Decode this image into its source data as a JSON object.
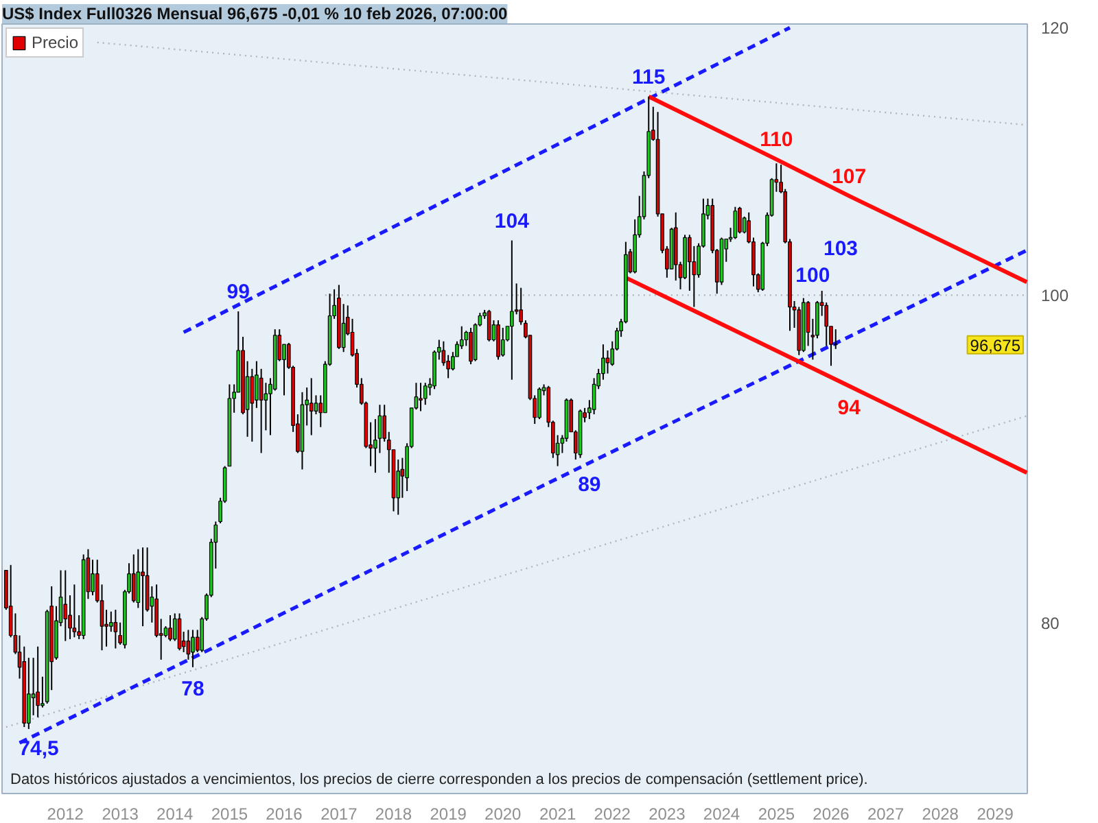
{
  "chart_data": {
    "type": "candlestick",
    "title": "US$ Index Full0326 Mensual 96,675 -0,01 % 10 feb 2026, 07:00:00",
    "log": "y",
    "legend": "top left",
    "xlim": [
      "2010-11-04",
      "2029-08-04"
    ],
    "ylim": [
      71.2,
      120.3
    ],
    "xticks": [
      "2012",
      "2013",
      "2014",
      "2015",
      "2016",
      "2017",
      "2018",
      "2019",
      "2020",
      "2021",
      "2022",
      "2023",
      "2024",
      "2025",
      "2026",
      "2027",
      "2028",
      "2029"
    ],
    "yticks": [
      80,
      100,
      120
    ],
    "series": [
      {
        "type": "line",
        "x": [
          "2010-12",
          "2029-08"
        ],
        "values": [
          74.5,
          92.1
        ],
        "color": "#b4b4b4",
        "line_style": "dotted"
      },
      {
        "type": "line",
        "x": [
          "2012-08",
          "2029-08"
        ],
        "values": [
          118.8,
          112.3
        ],
        "color": "#b4b4b4",
        "line_style": "dotted"
      },
      {
        "type": "line",
        "x": [
          "2016-10",
          "2025-09",
          "2029-08"
        ],
        "values": [
          100,
          100,
          100
        ],
        "color": "#b4b4b4",
        "line_style": "dotted"
      },
      {
        "type": "line",
        "x": [
          "2014-03",
          "2025-04"
        ],
        "values": [
          97.5,
          120.0
        ],
        "color": "#1a1aff",
        "line_style": "dashed"
      },
      {
        "type": "line",
        "x": [
          "2011-03",
          "2021-08",
          "2029-08"
        ],
        "values": [
          73.7,
          89.2,
          103.1
        ],
        "color": "#1a1aff",
        "line_style": "dashed"
      },
      {
        "type": "line",
        "x": [
          "2022-09",
          "2025-01",
          "2026-05",
          "2029-08"
        ],
        "values": [
          114.5,
          109.7,
          107.0,
          100.9
        ],
        "value_labels": [
          null,
          "110",
          "107",
          null
        ],
        "color": "#ff0d0d",
        "line_style": "solid"
      },
      {
        "type": "line",
        "x": [
          "2022-04",
          "2026-05",
          "2029-08"
        ],
        "values": [
          101.2,
          94.0,
          88.6
        ],
        "value_labels": [
          null,
          "94",
          null
        ],
        "color": "#ff0d0d",
        "line_style": "solid"
      },
      {
        "name": "Precio",
        "x": [
          "2010-12",
          "2011-01",
          "2011-02",
          "2011-03",
          "2011-04",
          "2011-05",
          "2011-06",
          "2011-07",
          "2011-08",
          "2011-09",
          "2011-10",
          "2011-11",
          "2011-12",
          "2012-01",
          "2012-02",
          "2012-03",
          "2012-04",
          "2012-05",
          "2012-06",
          "2012-07",
          "2012-08",
          "2012-09",
          "2012-10",
          "2012-11",
          "2012-12",
          "2013-01",
          "2013-02",
          "2013-03",
          "2013-04",
          "2013-05",
          "2013-06",
          "2013-07",
          "2013-08",
          "2013-09",
          "2013-10",
          "2013-11",
          "2013-12",
          "2014-01",
          "2014-02",
          "2014-03",
          "2014-04",
          "2014-05",
          "2014-06",
          "2014-07",
          "2014-08",
          "2014-09",
          "2014-10",
          "2014-11",
          "2014-12",
          "2015-01",
          "2015-02",
          "2015-03",
          "2015-04",
          "2015-05",
          "2015-06",
          "2015-07",
          "2015-08",
          "2015-09",
          "2015-10",
          "2015-11",
          "2015-12",
          "2016-01",
          "2016-02",
          "2016-03",
          "2016-04",
          "2016-05",
          "2016-06",
          "2016-07",
          "2016-08",
          "2016-09",
          "2016-10",
          "2016-11",
          "2016-12",
          "2017-01",
          "2017-02",
          "2017-03",
          "2017-04",
          "2017-05",
          "2017-06",
          "2017-07",
          "2017-08",
          "2017-09",
          "2017-10",
          "2017-11",
          "2017-12",
          "2018-01",
          "2018-02",
          "2018-03",
          "2018-04",
          "2018-05",
          "2018-06",
          "2018-07",
          "2018-08",
          "2018-09",
          "2018-10",
          "2018-11",
          "2018-12",
          "2019-01",
          "2019-02",
          "2019-03",
          "2019-04",
          "2019-05",
          "2019-06",
          "2019-07",
          "2019-08",
          "2019-09",
          "2019-10",
          "2019-11",
          "2019-12",
          "2020-01",
          "2020-02",
          "2020-03",
          "2020-04",
          "2020-05",
          "2020-06",
          "2020-07",
          "2020-08",
          "2020-09",
          "2020-10",
          "2020-11",
          "2020-12",
          "2021-01",
          "2021-02",
          "2021-03",
          "2021-04",
          "2021-05",
          "2021-06",
          "2021-07",
          "2021-08",
          "2021-09",
          "2021-10",
          "2021-11",
          "2021-12",
          "2022-01",
          "2022-02",
          "2022-03",
          "2022-04",
          "2022-05",
          "2022-06",
          "2022-07",
          "2022-08",
          "2022-09",
          "2022-10",
          "2022-11",
          "2022-12",
          "2023-01",
          "2023-02",
          "2023-03",
          "2023-04",
          "2023-05",
          "2023-06",
          "2023-07",
          "2023-08",
          "2023-09",
          "2023-10",
          "2023-11",
          "2023-12",
          "2024-01",
          "2024-02",
          "2024-03",
          "2024-04",
          "2024-05",
          "2024-06",
          "2024-07",
          "2024-08",
          "2024-09",
          "2024-10",
          "2024-11",
          "2024-12",
          "2025-01",
          "2025-02",
          "2025-03",
          "2025-04",
          "2025-05",
          "2025-06",
          "2025-07",
          "2025-08",
          "2025-09",
          "2025-10",
          "2025-11",
          "2025-12",
          "2026-01",
          "2026-02"
        ],
        "ohlc": [
          [
            82.9,
            82.9,
            80.7,
            80.8
          ],
          [
            80.9,
            83.2,
            79.2,
            79.3
          ],
          [
            79.3,
            80.5,
            78.3,
            78.4
          ],
          [
            78.4,
            79.3,
            77.0,
            77.6
          ],
          [
            77.9,
            78.7,
            74.5,
            74.7
          ],
          [
            74.7,
            78.1,
            74.4,
            76.2
          ],
          [
            76.0,
            78.1,
            75.1,
            76.2
          ],
          [
            76.3,
            78.7,
            75.0,
            75.6
          ],
          [
            75.6,
            77.1,
            75.5,
            75.7
          ],
          [
            75.8,
            80.7,
            75.7,
            80.6
          ],
          [
            80.9,
            82.0,
            76.4,
            77.9
          ],
          [
            78.1,
            80.9,
            78.0,
            80.1
          ],
          [
            80.0,
            82.9,
            79.8,
            81.4
          ],
          [
            81.0,
            82.9,
            79.0,
            80.2
          ],
          [
            80.4,
            81.5,
            79.1,
            79.7
          ],
          [
            79.7,
            82.1,
            79.2,
            79.5
          ],
          [
            79.5,
            80.4,
            79.1,
            79.3
          ],
          [
            79.3,
            83.8,
            79.1,
            83.5
          ],
          [
            83.6,
            84.1,
            81.3,
            81.7
          ],
          [
            81.7,
            83.5,
            81.5,
            82.7
          ],
          [
            82.7,
            83.5,
            81.1,
            81.2
          ],
          [
            81.2,
            82.1,
            78.5,
            79.8
          ],
          [
            79.9,
            80.7,
            78.7,
            79.8
          ],
          [
            79.8,
            80.6,
            79.5,
            80.0
          ],
          [
            80.0,
            80.7,
            78.6,
            79.5
          ],
          [
            79.3,
            80.0,
            78.8,
            78.9
          ],
          [
            78.8,
            81.8,
            78.6,
            81.7
          ],
          [
            81.7,
            83.3,
            81.6,
            82.7
          ],
          [
            82.7,
            83.8,
            81.1,
            81.2
          ],
          [
            81.1,
            84.1,
            80.8,
            82.8
          ],
          [
            82.8,
            84.2,
            79.8,
            82.6
          ],
          [
            82.6,
            84.2,
            80.6,
            80.7
          ],
          [
            80.9,
            82.0,
            80.0,
            81.4
          ],
          [
            81.3,
            82.1,
            79.2,
            79.3
          ],
          [
            79.4,
            80.2,
            78.0,
            79.3
          ],
          [
            79.3,
            79.8,
            79.2,
            79.7
          ],
          [
            79.7,
            80.4,
            79.0,
            79.1
          ],
          [
            79.1,
            80.5,
            79.0,
            80.2
          ],
          [
            80.2,
            80.5,
            78.5,
            78.6
          ],
          [
            79.0,
            79.5,
            78.4,
            78.7
          ],
          [
            79.0,
            79.6,
            78.0,
            78.3
          ],
          [
            78.4,
            79.6,
            77.6,
            79.2
          ],
          [
            79.2,
            79.6,
            78.4,
            78.5
          ],
          [
            78.5,
            80.3,
            78.4,
            80.2
          ],
          [
            80.2,
            81.6,
            80.1,
            81.5
          ],
          [
            81.5,
            84.7,
            81.4,
            84.5
          ],
          [
            84.5,
            85.7,
            83.0,
            85.5
          ],
          [
            85.7,
            87.1,
            85.6,
            86.9
          ],
          [
            86.9,
            89.0,
            86.8,
            88.9
          ],
          [
            89.0,
            94.1,
            89.0,
            93.2
          ],
          [
            93.2,
            94.1,
            92.3,
            93.6
          ],
          [
            93.6,
            98.9,
            93.6,
            96.3
          ],
          [
            96.3,
            97.2,
            92.2,
            92.3
          ],
          [
            92.5,
            95.6,
            90.8,
            94.6
          ],
          [
            94.6,
            95.1,
            90.5,
            92.9
          ],
          [
            93.1,
            95.6,
            92.6,
            94.7
          ],
          [
            94.5,
            95.1,
            89.8,
            93.1
          ],
          [
            93.1,
            94.2,
            91.2,
            93.5
          ],
          [
            93.5,
            94.5,
            90.9,
            94.1
          ],
          [
            93.8,
            97.7,
            93.7,
            97.3
          ],
          [
            97.3,
            97.7,
            95.6,
            95.7
          ],
          [
            95.7,
            96.7,
            93.4,
            96.7
          ],
          [
            96.7,
            96.8,
            95.1,
            95.2
          ],
          [
            95.2,
            95.3,
            91.1,
            91.5
          ],
          [
            91.6,
            92.2,
            89.8,
            89.9
          ],
          [
            89.9,
            93.6,
            88.8,
            92.8
          ],
          [
            92.8,
            93.9,
            91.5,
            93.1
          ],
          [
            92.9,
            94.5,
            90.9,
            92.4
          ],
          [
            92.4,
            93.4,
            92.2,
            92.9
          ],
          [
            92.9,
            93.4,
            91.4,
            92.3
          ],
          [
            92.3,
            95.6,
            92.3,
            95.4
          ],
          [
            95.4,
            100.1,
            95.3,
            98.6
          ],
          [
            98.6,
            100.4,
            98.4,
            99.3
          ],
          [
            99.8,
            100.7,
            96.4,
            96.5
          ],
          [
            96.5,
            99.4,
            96.2,
            98.1
          ],
          [
            98.5,
            99.3,
            97.3,
            97.4
          ],
          [
            97.5,
            98.4,
            95.9,
            96.0
          ],
          [
            96.1,
            96.4,
            93.9,
            94.1
          ],
          [
            94.1,
            94.5,
            92.8,
            92.9
          ],
          [
            92.9,
            93.0,
            90.1,
            90.2
          ],
          [
            90.3,
            91.7,
            89.0,
            90.1
          ],
          [
            90.1,
            91.9,
            88.6,
            90.6
          ],
          [
            90.7,
            92.8,
            89.8,
            92.1
          ],
          [
            92.1,
            92.8,
            90.5,
            90.7
          ],
          [
            90.6,
            91.1,
            88.6,
            90.0
          ],
          [
            90.0,
            90.0,
            86.3,
            87.1
          ],
          [
            87.1,
            89.4,
            86.1,
            88.7
          ],
          [
            88.8,
            89.5,
            87.1,
            88.4
          ],
          [
            88.3,
            90.4,
            87.5,
            90.2
          ],
          [
            90.2,
            92.6,
            90.1,
            92.6
          ],
          [
            92.6,
            94.2,
            92.5,
            93.3
          ],
          [
            93.2,
            94.2,
            92.4,
            93.1
          ],
          [
            93.2,
            94.2,
            92.8,
            94.0
          ],
          [
            93.9,
            94.5,
            93.4,
            94.1
          ],
          [
            94.0,
            96.3,
            93.8,
            96.2
          ],
          [
            96.2,
            97.0,
            95.7,
            96.5
          ],
          [
            96.3,
            96.9,
            95.3,
            95.5
          ],
          [
            95.6,
            96.0,
            94.5,
            95.1
          ],
          [
            95.1,
            96.2,
            95.0,
            95.9
          ],
          [
            95.9,
            96.9,
            95.9,
            96.7
          ],
          [
            96.6,
            97.9,
            96.4,
            97.0
          ],
          [
            97.0,
            97.6,
            96.6,
            97.5
          ],
          [
            97.5,
            97.8,
            95.4,
            95.6
          ],
          [
            95.7,
            98.1,
            95.6,
            98.0
          ],
          [
            98.0,
            98.8,
            97.9,
            98.6
          ],
          [
            98.6,
            99.0,
            98.4,
            98.8
          ],
          [
            98.9,
            99.0,
            96.9,
            97.0
          ],
          [
            97.0,
            98.3,
            96.9,
            98.0
          ],
          [
            98.0,
            98.3,
            95.7,
            95.9
          ],
          [
            96.0,
            97.8,
            95.9,
            97.0
          ],
          [
            97.0,
            97.9,
            96.9,
            97.9
          ],
          [
            97.9,
            103.8,
            94.4,
            98.9
          ],
          [
            99.0,
            100.8,
            98.7,
            98.9
          ],
          [
            99.0,
            100.5,
            98.0,
            98.2
          ],
          [
            98.1,
            98.3,
            97.1,
            97.2
          ],
          [
            97.3,
            97.3,
            93.1,
            93.2
          ],
          [
            93.2,
            93.4,
            91.6,
            92.0
          ],
          [
            92.0,
            93.9,
            91.9,
            93.8
          ],
          [
            93.7,
            94.1,
            93.4,
            93.9
          ],
          [
            93.9,
            94.0,
            91.4,
            91.7
          ],
          [
            91.7,
            91.8,
            89.5,
            89.8
          ],
          [
            89.7,
            90.9,
            89.0,
            90.4
          ],
          [
            90.4,
            90.9,
            89.8,
            90.7
          ],
          [
            90.7,
            93.2,
            90.5,
            93.1
          ],
          [
            93.1,
            93.2,
            91.1,
            91.1
          ],
          [
            91.1,
            91.2,
            89.4,
            89.8
          ],
          [
            89.7,
            92.5,
            89.5,
            92.4
          ],
          [
            92.3,
            92.6,
            91.7,
            92.0
          ],
          [
            92.3,
            93.1,
            91.9,
            92.6
          ],
          [
            92.5,
            94.5,
            92.2,
            94.1
          ],
          [
            94.0,
            95.1,
            93.8,
            94.8
          ],
          [
            94.8,
            96.7,
            94.4,
            95.8
          ],
          [
            95.8,
            96.3,
            94.8,
            95.5
          ],
          [
            95.4,
            96.9,
            95.3,
            96.4
          ],
          [
            96.4,
            97.8,
            96.3,
            97.6
          ],
          [
            97.6,
            98.4,
            97.2,
            98.2
          ],
          [
            98.2,
            103.7,
            98.1,
            102.8
          ],
          [
            103.0,
            103.2,
            101.5,
            101.6
          ],
          [
            101.6,
            105.3,
            101.5,
            104.2
          ],
          [
            104.2,
            107.0,
            104.0,
            105.5
          ],
          [
            105.5,
            108.8,
            105.3,
            108.5
          ],
          [
            108.5,
            114.5,
            108.3,
            111.8
          ],
          [
            111.9,
            113.7,
            111.1,
            111.2
          ],
          [
            111.2,
            113.3,
            105.5,
            105.7
          ],
          [
            105.7,
            105.7,
            102.9,
            103.1
          ],
          [
            103.2,
            103.4,
            101.2,
            101.8
          ],
          [
            101.8,
            104.7,
            101.8,
            104.6
          ],
          [
            104.7,
            105.8,
            101.0,
            102.1
          ],
          [
            102.1,
            102.3,
            100.4,
            101.2
          ],
          [
            101.2,
            104.2,
            101.1,
            104.0
          ],
          [
            104.0,
            104.2,
            100.3,
            102.3
          ],
          [
            102.3,
            103.4,
            99.2,
            101.4
          ],
          [
            101.4,
            103.6,
            101.2,
            103.4
          ],
          [
            103.4,
            106.8,
            103.3,
            105.7
          ],
          [
            105.6,
            106.8,
            105.3,
            106.3
          ],
          [
            106.3,
            106.8,
            102.9,
            103.1
          ],
          [
            103.1,
            103.2,
            100.1,
            100.9
          ],
          [
            100.9,
            104.0,
            100.7,
            103.9
          ],
          [
            103.2,
            103.9,
            102.3,
            103.9
          ],
          [
            103.9,
            104.7,
            103.7,
            104.0
          ],
          [
            104.0,
            106.2,
            103.9,
            105.9
          ],
          [
            106.1,
            106.2,
            104.3,
            104.4
          ],
          [
            104.4,
            105.5,
            104.3,
            105.4
          ],
          [
            105.2,
            105.8,
            103.6,
            103.7
          ],
          [
            103.7,
            104.0,
            100.6,
            101.4
          ],
          [
            101.4,
            101.5,
            100.2,
            100.4
          ],
          [
            100.4,
            103.7,
            100.3,
            103.6
          ],
          [
            103.6,
            105.8,
            103.4,
            105.6
          ],
          [
            105.6,
            108.3,
            105.5,
            108.2
          ],
          [
            108.2,
            109.4,
            107.3,
            108.0
          ],
          [
            108.0,
            109.3,
            107.2,
            107.3
          ],
          [
            107.3,
            107.5,
            103.6,
            103.7
          ],
          [
            103.7,
            103.9,
            97.6,
            99.2
          ],
          [
            99.2,
            99.6,
            97.8,
            99.0
          ],
          [
            99.0,
            99.2,
            96.0,
            96.3
          ],
          [
            96.3,
            99.8,
            96.2,
            99.5
          ],
          [
            99.5,
            99.6,
            96.6,
            97.5
          ],
          [
            97.3,
            98.4,
            95.7,
            97.2
          ],
          [
            97.3,
            99.6,
            97.1,
            99.5
          ],
          [
            99.5,
            100.3,
            98.6,
            99.3
          ],
          [
            99.3,
            99.5,
            96.6,
            97.9
          ],
          [
            97.9,
            97.9,
            95.3,
            96.7
          ],
          [
            96.7,
            97.7,
            96.4,
            96.675
          ]
        ],
        "colors": [
          "#e00000",
          "#e00000",
          "#e00000",
          "#e00000",
          "#e00000",
          "#1ec81e",
          "#1ec81e",
          "#e00000",
          "#1ec81e",
          "#1ec81e",
          "#e00000",
          "#1ec81e",
          "#1ec81e",
          "#e00000",
          "#e00000",
          "#e00000",
          "#e00000",
          "#1ec81e",
          "#e00000",
          "#1ec81e",
          "#e00000",
          "#e00000",
          "#e00000",
          "#1ec81e",
          "#e00000",
          "#e00000",
          "#1ec81e",
          "#1ec81e",
          "#e00000",
          "#1ec81e",
          "#e00000",
          "#e00000",
          "#1ec81e",
          "#e00000",
          "#e00000",
          "#1ec81e",
          "#e00000",
          "#1ec81e",
          "#e00000",
          "#e00000",
          "#e00000",
          "#1ec81e",
          "#e00000",
          "#1ec81e",
          "#1ec81e",
          "#1ec81e",
          "#1ec81e",
          "#1ec81e",
          "#1ec81e",
          "#1ec81e",
          "#1ec81e",
          "#1ec81e",
          "#e00000",
          "#1ec81e",
          "#e00000",
          "#1ec81e",
          "#e00000",
          "#1ec81e",
          "#1ec81e",
          "#1ec81e",
          "#e00000",
          "#1ec81e",
          "#e00000",
          "#e00000",
          "#e00000",
          "#1ec81e",
          "#1ec81e",
          "#e00000",
          "#1ec81e",
          "#e00000",
          "#1ec81e",
          "#1ec81e",
          "#1ec81e",
          "#e00000",
          "#1ec81e",
          "#e00000",
          "#e00000",
          "#e00000",
          "#e00000",
          "#e00000",
          "#e00000",
          "#1ec81e",
          "#1ec81e",
          "#e00000",
          "#e00000",
          "#e00000",
          "#1ec81e",
          "#e00000",
          "#1ec81e",
          "#1ec81e",
          "#1ec81e",
          "#e00000",
          "#1ec81e",
          "#1ec81e",
          "#1ec81e",
          "#1ec81e",
          "#e00000",
          "#e00000",
          "#1ec81e",
          "#1ec81e",
          "#1ec81e",
          "#1ec81e",
          "#e00000",
          "#1ec81e",
          "#1ec81e",
          "#1ec81e",
          "#e00000",
          "#1ec81e",
          "#e00000",
          "#1ec81e",
          "#1ec81e",
          "#1ec81e",
          "#e00000",
          "#e00000",
          "#e00000",
          "#e00000",
          "#e00000",
          "#1ec81e",
          "#1ec81e",
          "#e00000",
          "#e00000",
          "#1ec81e",
          "#1ec81e",
          "#1ec81e",
          "#e00000",
          "#e00000",
          "#1ec81e",
          "#e00000",
          "#1ec81e",
          "#1ec81e",
          "#1ec81e",
          "#1ec81e",
          "#e00000",
          "#1ec81e",
          "#1ec81e",
          "#1ec81e",
          "#1ec81e",
          "#e00000",
          "#1ec81e",
          "#1ec81e",
          "#1ec81e",
          "#1ec81e",
          "#e00000",
          "#e00000",
          "#e00000",
          "#e00000",
          "#1ec81e",
          "#e00000",
          "#e00000",
          "#1ec81e",
          "#e00000",
          "#e00000",
          "#1ec81e",
          "#1ec81e",
          "#1ec81e",
          "#e00000",
          "#e00000",
          "#1ec81e",
          "#1ec81e",
          "#1ec81e",
          "#1ec81e",
          "#e00000",
          "#1ec81e",
          "#e00000",
          "#e00000",
          "#e00000",
          "#1ec81e",
          "#1ec81e",
          "#1ec81e",
          "#e00000",
          "#e00000",
          "#e00000",
          "#e00000",
          "#e00000",
          "#e00000",
          "#1ec81e",
          "#e00000",
          "#e00000",
          "#1ec81e",
          "#e00000",
          "#e00000",
          "#e00000",
          "#e00000"
        ]
      }
    ],
    "annotations": [
      {
        "text": "74,5",
        "x": "2011-04",
        "y": 74.5
      },
      {
        "text": "78",
        "x": "2014-05",
        "y": 77.6
      },
      {
        "text": "99",
        "x": "2015-03",
        "y": 98.9
      },
      {
        "text": "104",
        "x": "2020-03",
        "y": 103.8
      },
      {
        "text": "89",
        "x": "2021-08",
        "y": 89.2
      },
      {
        "text": "115",
        "x": "2022-09",
        "y": 114.5
      },
      {
        "text": "100",
        "x": "2025-09",
        "y": 100
      },
      {
        "text": "96,675",
        "y": 96.675
      },
      "103",
      "Datos históricos ajustados a vencimientos, los precios de cierre corresponden a los precios de compensación (settlement price)."
    ]
  }
}
